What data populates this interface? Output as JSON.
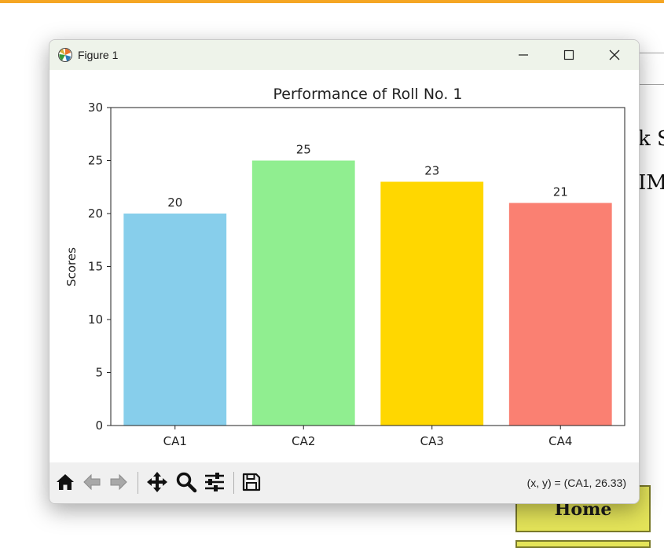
{
  "background": {
    "text_line_1": "k S",
    "text_line_2": "IM",
    "home_button": "Home"
  },
  "window": {
    "title": "Figure 1",
    "controls": [
      "minimize",
      "maximize",
      "close"
    ]
  },
  "toolbar": {
    "tools": [
      "home-icon",
      "back-arrow-icon",
      "forward-arrow-icon",
      "pan-icon",
      "zoom-icon",
      "configure-icon",
      "save-icon"
    ],
    "coordinates": "(x, y) = (CA1, 26.33)"
  },
  "chart_data": {
    "type": "bar",
    "title": "Performance of Roll No. 1",
    "categories": [
      "CA1",
      "CA2",
      "CA3",
      "CA4"
    ],
    "values": [
      20,
      25,
      23,
      21
    ],
    "colors": [
      "#87ceeb",
      "#90ee90",
      "#ffd700",
      "#fa8072"
    ],
    "xlabel": "",
    "ylabel": "Scores",
    "ylim": [
      0,
      30
    ],
    "yticks": [
      0,
      5,
      10,
      15,
      20,
      25,
      30
    ],
    "data_labels": true,
    "grid": false
  }
}
